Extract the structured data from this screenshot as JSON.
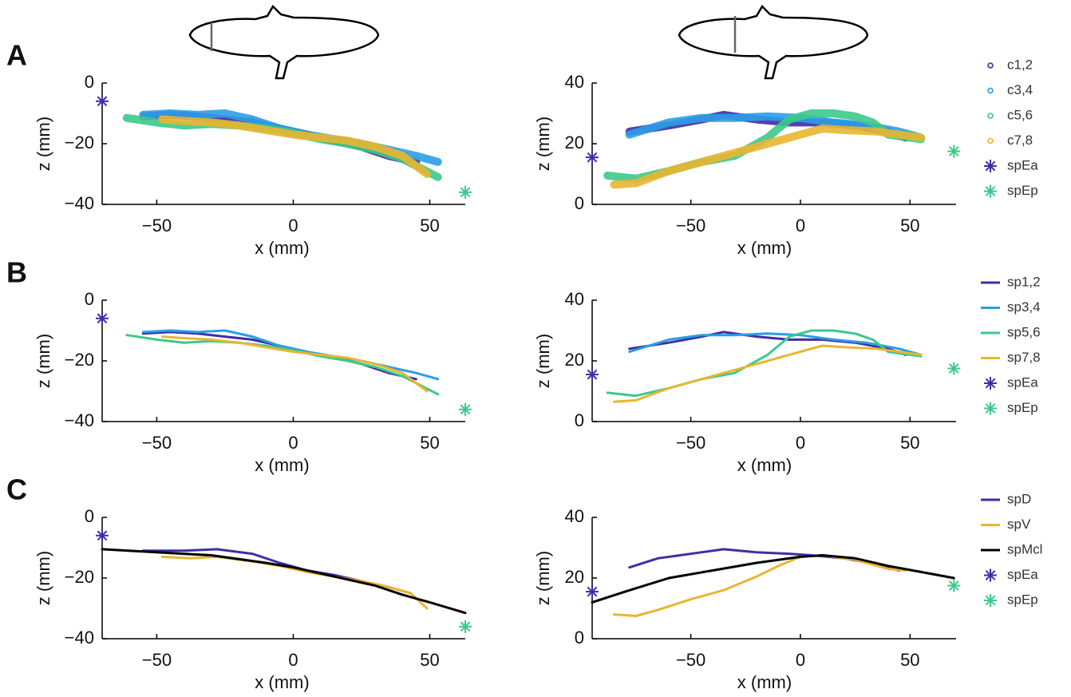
{
  "chart_data": [
    {
      "type": "line",
      "panel": "A",
      "xlabel": "x (mm)",
      "ylabel": "z (mm)",
      "xlim": [
        -70,
        63
      ],
      "ylim": [
        -40,
        0
      ],
      "xticks": [
        {
          "value": -50,
          "label": "−50"
        },
        0,
        50
      ],
      "yticks": [
        {
          "value": -40,
          "label": "−40"
        },
        {
          "value": -20,
          "label": "−20"
        },
        0
      ],
      "series": [
        {
          "name": "c1,2",
          "color": "#3f2ea6",
          "marker": "circle",
          "x": [
            -55,
            -45,
            -35,
            -25,
            -15,
            -5,
            5,
            15,
            25,
            35,
            45
          ],
          "values": [
            -11,
            -10.5,
            -11,
            -12,
            -13,
            -15,
            -17,
            -19,
            -21,
            -24,
            -26
          ]
        },
        {
          "name": "c3,4",
          "color": "#2b9ee6",
          "marker": "circle",
          "x": [
            -55,
            -45,
            -35,
            -25,
            -15,
            -5,
            5,
            15,
            25,
            35,
            45,
            53
          ],
          "values": [
            -10.5,
            -10,
            -10.5,
            -10,
            -12,
            -15,
            -17,
            -18.5,
            -20,
            -22,
            -24,
            -26
          ]
        },
        {
          "name": "c5,6",
          "color": "#3cc98a",
          "marker": "circle",
          "x": [
            -61,
            -50,
            -40,
            -30,
            -20,
            -10,
            0,
            10,
            20,
            30,
            40,
            53
          ],
          "values": [
            -11.5,
            -13,
            -14,
            -13.5,
            -14,
            -15,
            -16.5,
            -18.5,
            -20,
            -22,
            -25,
            -31
          ]
        },
        {
          "name": "c7,8",
          "color": "#e8b631",
          "marker": "circle",
          "x": [
            -48,
            -40,
            -30,
            -20,
            -10,
            0,
            10,
            20,
            30,
            40,
            49
          ],
          "values": [
            -12,
            -12.5,
            -13,
            -14,
            -15.5,
            -17,
            -18,
            -19,
            -21,
            -24,
            -30
          ]
        },
        {
          "name": "spEa",
          "color": "#3f2ea6",
          "marker": "asterisk",
          "x": [
            -70
          ],
          "values": [
            -6
          ]
        },
        {
          "name": "spEp",
          "color": "#3cc98a",
          "marker": "asterisk",
          "x": [
            63
          ],
          "values": [
            -36
          ]
        }
      ]
    },
    {
      "type": "line",
      "xlabel": "x (mm)",
      "ylabel": "z (mm)",
      "xlim": [
        -95,
        71
      ],
      "ylim": [
        0,
        40
      ],
      "legend": "right",
      "xticks": [
        {
          "value": -50,
          "label": "−50"
        },
        0,
        50
      ],
      "yticks": [
        0,
        20,
        40
      ],
      "series": [
        {
          "name": "c1,2",
          "color": "#3f2ea6",
          "marker": "circle",
          "x": [
            -78,
            -60,
            -45,
            -35,
            -20,
            -5,
            10,
            25,
            40,
            48
          ],
          "values": [
            24,
            26,
            28,
            29.5,
            28,
            27,
            27,
            26,
            24,
            22
          ]
        },
        {
          "name": "c3,4",
          "color": "#2b9ee6",
          "marker": "circle",
          "x": [
            -78,
            -60,
            -45,
            -30,
            -15,
            0,
            15,
            30,
            45,
            55
          ],
          "values": [
            23,
            27,
            28.5,
            28.5,
            29,
            28.5,
            27,
            26,
            24,
            22
          ]
        },
        {
          "name": "c5,6",
          "color": "#3cc98a",
          "marker": "circle",
          "x": [
            -88,
            -75,
            -60,
            -45,
            -30,
            -15,
            -5,
            5,
            15,
            25,
            33,
            40,
            55
          ],
          "values": [
            9.5,
            8.5,
            11,
            14,
            16,
            22,
            28,
            30,
            30,
            29,
            27,
            23,
            21.5
          ]
        },
        {
          "name": "c7,8",
          "color": "#e8b631",
          "marker": "circle",
          "x": [
            -85,
            -75,
            -60,
            -45,
            -30,
            -15,
            0,
            10,
            20,
            35,
            55
          ],
          "values": [
            6.5,
            7,
            11,
            14,
            17,
            20,
            23,
            25,
            24.5,
            24,
            22
          ]
        },
        {
          "name": "spEa",
          "color": "#3f2ea6",
          "marker": "asterisk",
          "x": [
            -95
          ],
          "values": [
            15.5
          ]
        },
        {
          "name": "spEp",
          "color": "#3cc98a",
          "marker": "asterisk",
          "x": [
            70
          ],
          "values": [
            17.5
          ]
        }
      ]
    },
    {
      "type": "line",
      "panel": "B",
      "xlabel": "x (mm)",
      "ylabel": "z (mm)",
      "xlim": [
        -70,
        63
      ],
      "ylim": [
        -40,
        0
      ],
      "xticks": [
        {
          "value": -50,
          "label": "−50"
        },
        0,
        50
      ],
      "yticks": [
        {
          "value": -40,
          "label": "−40"
        },
        {
          "value": -20,
          "label": "−20"
        },
        0
      ],
      "series": [
        {
          "name": "sp1,2",
          "color": "#3f2ea6",
          "x": [
            -55,
            -45,
            -35,
            -25,
            -15,
            -5,
            5,
            15,
            25,
            35,
            45
          ],
          "values": [
            -11,
            -10.5,
            -11,
            -12,
            -13,
            -15,
            -17,
            -19,
            -21,
            -24,
            -26
          ]
        },
        {
          "name": "sp3,4",
          "color": "#2b9ee6",
          "x": [
            -55,
            -45,
            -35,
            -25,
            -15,
            -5,
            5,
            15,
            25,
            35,
            45,
            53
          ],
          "values": [
            -10.5,
            -10,
            -10.5,
            -10,
            -12,
            -15,
            -17,
            -18.5,
            -20,
            -22,
            -24,
            -26
          ]
        },
        {
          "name": "sp5,6",
          "color": "#3cc98a",
          "x": [
            -61,
            -50,
            -40,
            -30,
            -20,
            -10,
            0,
            10,
            20,
            30,
            40,
            53
          ],
          "values": [
            -11.5,
            -13,
            -14,
            -13.5,
            -14,
            -15,
            -16.5,
            -18.5,
            -20,
            -22,
            -25,
            -31
          ]
        },
        {
          "name": "sp7,8",
          "color": "#e8b631",
          "x": [
            -48,
            -40,
            -30,
            -20,
            -10,
            0,
            10,
            20,
            30,
            40,
            49
          ],
          "values": [
            -12,
            -12.5,
            -13,
            -14,
            -15.5,
            -17,
            -18,
            -19,
            -21,
            -24,
            -30
          ]
        },
        {
          "name": "spEa",
          "color": "#3f2ea6",
          "marker": "asterisk",
          "x": [
            -70
          ],
          "values": [
            -6
          ]
        },
        {
          "name": "spEp",
          "color": "#3cc98a",
          "marker": "asterisk",
          "x": [
            63
          ],
          "values": [
            -36
          ]
        }
      ]
    },
    {
      "type": "line",
      "xlabel": "x (mm)",
      "ylabel": "z (mm)",
      "xlim": [
        -95,
        71
      ],
      "ylim": [
        0,
        40
      ],
      "legend": "right",
      "xticks": [
        {
          "value": -50,
          "label": "−50"
        },
        0,
        50
      ],
      "yticks": [
        0,
        20,
        40
      ],
      "series": [
        {
          "name": "sp1,2",
          "color": "#3f2ea6",
          "x": [
            -78,
            -60,
            -45,
            -35,
            -20,
            -5,
            10,
            25,
            40,
            48
          ],
          "values": [
            24,
            26,
            28,
            29.5,
            28,
            27,
            27,
            26,
            24,
            22
          ]
        },
        {
          "name": "sp3,4",
          "color": "#2b9ee6",
          "x": [
            -78,
            -60,
            -45,
            -30,
            -15,
            0,
            15,
            30,
            45,
            55
          ],
          "values": [
            23,
            27,
            28.5,
            28.5,
            29,
            28.5,
            27,
            26,
            24,
            22
          ]
        },
        {
          "name": "sp5,6",
          "color": "#3cc98a",
          "x": [
            -88,
            -75,
            -60,
            -45,
            -30,
            -15,
            -5,
            5,
            15,
            25,
            33,
            40,
            55
          ],
          "values": [
            9.5,
            8.5,
            11,
            14,
            16,
            22,
            28,
            30,
            30,
            29,
            27,
            23,
            21.5
          ]
        },
        {
          "name": "sp7,8",
          "color": "#e8b631",
          "x": [
            -85,
            -75,
            -60,
            -45,
            -30,
            -15,
            0,
            10,
            20,
            35,
            55
          ],
          "values": [
            6.5,
            7,
            11,
            14,
            17,
            20,
            23,
            25,
            24.5,
            24,
            22
          ]
        },
        {
          "name": "spEa",
          "color": "#3f2ea6",
          "marker": "asterisk",
          "x": [
            -95
          ],
          "values": [
            15.5
          ]
        },
        {
          "name": "spEp",
          "color": "#3cc98a",
          "marker": "asterisk",
          "x": [
            70
          ],
          "values": [
            17.5
          ]
        }
      ]
    },
    {
      "type": "line",
      "panel": "C",
      "xlabel": "x (mm)",
      "ylabel": "z (mm)",
      "xlim": [
        -70,
        63
      ],
      "ylim": [
        -40,
        0
      ],
      "xticks": [
        {
          "value": -50,
          "label": "−50"
        },
        0,
        50
      ],
      "yticks": [
        {
          "value": -40,
          "label": "−40"
        },
        {
          "value": -20,
          "label": "−20"
        },
        0
      ],
      "series": [
        {
          "name": "spD",
          "color": "#3f2ea6",
          "x": [
            -55,
            -40,
            -28,
            -15,
            -5,
            5,
            15,
            25,
            35,
            43
          ],
          "values": [
            -11,
            -11,
            -10.5,
            -12,
            -15,
            -17.5,
            -19,
            -21,
            -23,
            -25
          ]
        },
        {
          "name": "spV",
          "color": "#e8b631",
          "x": [
            -48,
            -38,
            -28,
            -15,
            -5,
            5,
            15,
            25,
            35,
            43,
            49
          ],
          "values": [
            -13,
            -13.5,
            -13,
            -14.5,
            -16,
            -18,
            -19.5,
            -21,
            -23,
            -25,
            -30
          ]
        },
        {
          "name": "spMcl",
          "color": "#000000",
          "x": [
            -70,
            -50,
            -30,
            -10,
            0,
            10,
            20,
            30,
            40,
            50,
            63
          ],
          "values": [
            -10.5,
            -11.5,
            -12.5,
            -15,
            -16.5,
            -18.5,
            -20.5,
            -22.5,
            -25.5,
            -28,
            -31.5
          ]
        },
        {
          "name": "spEa",
          "color": "#3f2ea6",
          "marker": "asterisk",
          "x": [
            -70
          ],
          "values": [
            -6
          ]
        },
        {
          "name": "spEp",
          "color": "#3cc98a",
          "marker": "asterisk",
          "x": [
            63
          ],
          "values": [
            -36
          ]
        }
      ]
    },
    {
      "type": "line",
      "xlabel": "x (mm)",
      "ylabel": "z (mm)",
      "xlim": [
        -95,
        71
      ],
      "ylim": [
        0,
        40
      ],
      "legend": "right",
      "xticks": [
        {
          "value": -50,
          "label": "−50"
        },
        0,
        50
      ],
      "yticks": [
        0,
        20,
        40
      ],
      "series": [
        {
          "name": "spD",
          "color": "#3f2ea6",
          "x": [
            -78,
            -65,
            -55,
            -45,
            -35,
            -20,
            -5,
            5,
            20,
            35,
            45
          ],
          "values": [
            23.5,
            26.5,
            27.5,
            28.5,
            29.5,
            28.5,
            28,
            27.5,
            26.5,
            24.5,
            22.5
          ]
        },
        {
          "name": "spV",
          "color": "#e8b631",
          "x": [
            -85,
            -75,
            -65,
            -50,
            -35,
            -20,
            -10,
            0,
            10,
            25,
            40,
            48
          ],
          "values": [
            8,
            7.5,
            9.5,
            13,
            16,
            20.5,
            24,
            27,
            27.5,
            26,
            23,
            22.5
          ]
        },
        {
          "name": "spMcl",
          "color": "#000000",
          "x": [
            -95,
            -80,
            -60,
            -40,
            -20,
            0,
            10,
            25,
            40,
            55,
            70
          ],
          "values": [
            12,
            15.5,
            20,
            22.5,
            25,
            27,
            27.5,
            26.5,
            24,
            22,
            20
          ]
        },
        {
          "name": "spEa",
          "color": "#3f2ea6",
          "marker": "asterisk",
          "x": [
            -95
          ],
          "values": [
            15.5
          ]
        },
        {
          "name": "spEp",
          "color": "#3cc98a",
          "marker": "asterisk",
          "x": [
            70
          ],
          "values": [
            17.5
          ]
        }
      ]
    }
  ]
}
